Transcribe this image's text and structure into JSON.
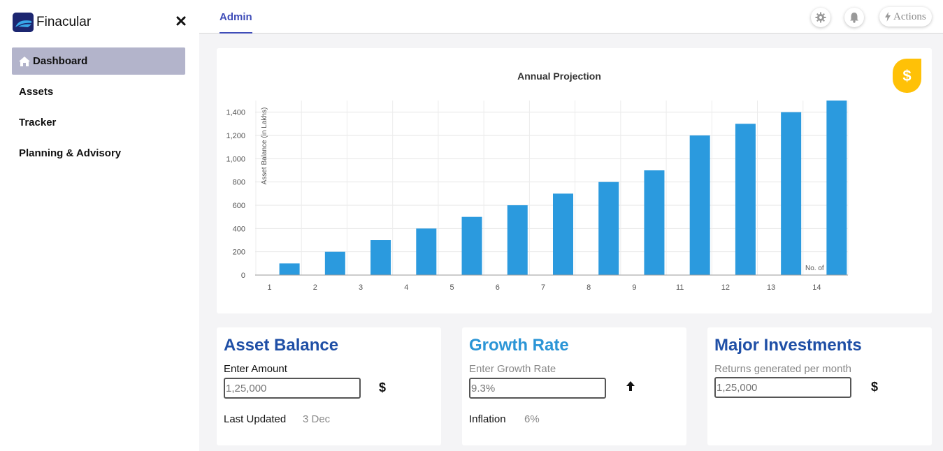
{
  "brand": {
    "name": "Finacular"
  },
  "sidebar": {
    "items": [
      {
        "label": "Dashboard",
        "icon": "home-icon",
        "active": true
      },
      {
        "label": "Assets"
      },
      {
        "label": "Tracker"
      },
      {
        "label": "Planning & Advisory"
      }
    ]
  },
  "topbar": {
    "tab": "Admin",
    "actions_label": "Actions"
  },
  "chart_data": {
    "type": "bar",
    "title": "Annual Projection",
    "ylabel": "Asset Balance (in Lakhs)",
    "xlabel": "No. of",
    "categories": [
      "1",
      "2",
      "3",
      "4",
      "5",
      "6",
      "7",
      "8",
      "9",
      "11",
      "12",
      "13",
      "14"
    ],
    "values": [
      100,
      200,
      300,
      400,
      500,
      600,
      700,
      800,
      900,
      1200,
      1300,
      1400,
      1500
    ],
    "ylim": [
      0,
      1500
    ],
    "yticks": [
      0,
      200,
      400,
      600,
      800,
      1000,
      1200,
      1400
    ],
    "ytick_labels": [
      "0",
      "200",
      "400",
      "600",
      "800",
      "1,000",
      "1,200",
      "1,400"
    ],
    "grid": true,
    "bar_color": "#2b9ade"
  },
  "cards": {
    "asset_balance": {
      "title": "Asset Balance",
      "title_color": "#1f4fa6",
      "label": "Enter Amount",
      "placeholder": "1,25,000",
      "icon_char": "$",
      "footer_label": "Last Updated",
      "footer_value": "3 Dec"
    },
    "growth_rate": {
      "title": "Growth Rate",
      "title_color": "#2b95d6",
      "label": "Enter Growth Rate",
      "placeholder": "9.3%",
      "icon_char": "🡅",
      "footer_label": "Inflation",
      "footer_value": "6%"
    },
    "major_investments": {
      "title": "Major Investments",
      "title_color": "#1f4fa6",
      "label": "Returns generated per month",
      "placeholder": "1,25,000",
      "icon_char": "$"
    }
  }
}
